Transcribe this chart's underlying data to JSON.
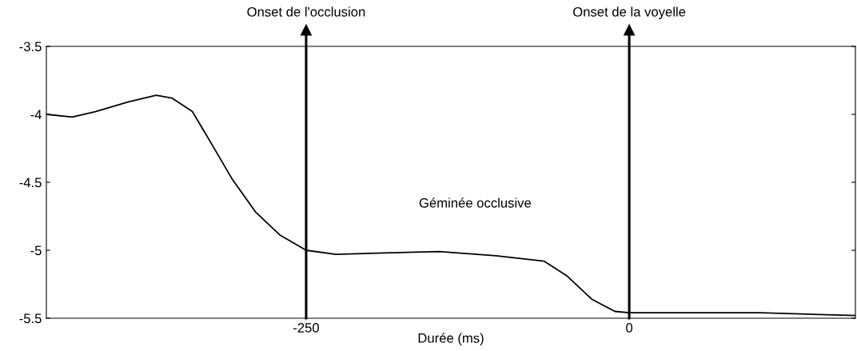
{
  "chart_data": {
    "type": "line",
    "xlabel": "Durée (ms)",
    "x": [
      -451,
      -431,
      -413,
      -388,
      -366,
      -354,
      -338,
      -323,
      -307,
      -289,
      -270,
      -250,
      -227,
      -190,
      -147,
      -103,
      -66,
      -48,
      -29,
      -11,
      0,
      39,
      101,
      175
    ],
    "series": [
      {
        "color": "#000000",
        "values": [
          -4.0,
          -4.02,
          -3.98,
          -3.91,
          -3.86,
          -3.88,
          -3.98,
          -4.22,
          -4.48,
          -4.72,
          -4.89,
          -5.0,
          -5.03,
          -5.02,
          -5.01,
          -5.04,
          -5.08,
          -5.19,
          -5.36,
          -5.45,
          -5.46,
          -5.46,
          -5.46,
          -5.48
        ]
      }
    ],
    "xlim": [
      -451,
      175
    ],
    "xticks": [
      -250,
      0
    ],
    "ylim": [
      -5.5,
      -3.5
    ],
    "yticks": [
      -5.5,
      -5,
      -4.5,
      -4,
      -3.5
    ],
    "ref_lines": [
      {
        "axis": "x",
        "value": -250,
        "label": "Onset de l'occlusion",
        "color": "#000000"
      },
      {
        "axis": "x",
        "value": 0,
        "label": "Onset de la voyelle",
        "color": "#000000"
      }
    ],
    "annotations": [
      "Géminée occlusive"
    ],
    "grid": false,
    "legend": false,
    "marker": "none",
    "line_style": "solid"
  }
}
